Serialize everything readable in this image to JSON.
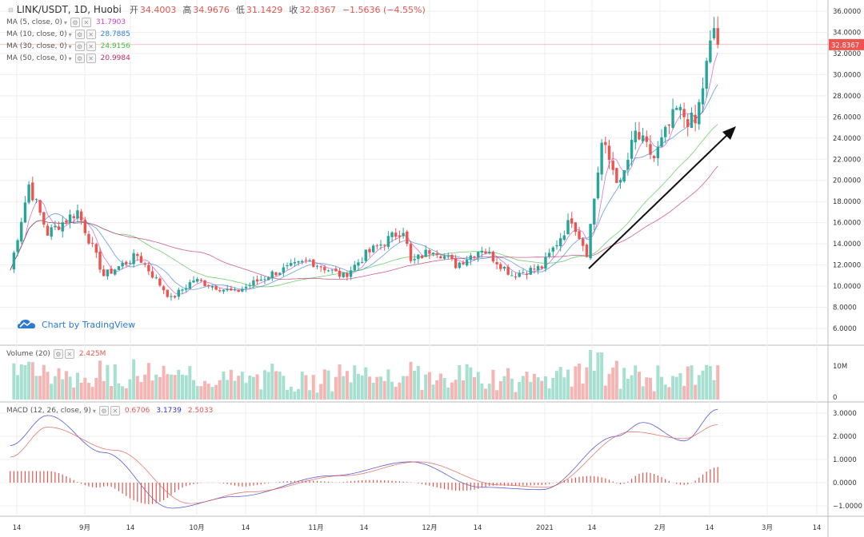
{
  "header": {
    "symbol": "LINK/USDT, 1D, Huobi",
    "open_label": "开",
    "open": "34.4003",
    "high_label": "高",
    "high": "34.9676",
    "low_label": "低",
    "low": "31.1429",
    "close_label": "收",
    "close": "32.8367",
    "change": "−1.5636 (−4.55%)"
  },
  "indicators": {
    "ma5": {
      "label": "MA (5, close, 0)",
      "value": "31.7903",
      "color": "#c844c8"
    },
    "ma10": {
      "label": "MA (10, close, 0)",
      "value": "28.7885",
      "color": "#2f7fd8"
    },
    "ma30": {
      "label": "MA (30, close, 0)",
      "value": "24.9156",
      "color": "#3fbf3f"
    },
    "ma50": {
      "label": "MA (50, close, 0)",
      "value": "20.9984",
      "color": "#c0286e"
    },
    "volume": {
      "label": "Volume (20)",
      "value": "2.425M",
      "color": "#e0574f"
    },
    "macd": {
      "label": "MACD (12, 26, close, 9)",
      "hist": "0.6706",
      "macd": "3.1739",
      "signal": "2.5033",
      "hist_color": "#e0574f",
      "macd_color": "#3333cc",
      "signal_color": "#e0574f"
    }
  },
  "branding": {
    "text": "Chart by TradingView"
  },
  "price_badge": {
    "value": "32.8367",
    "color": "#ef5350"
  },
  "colors": {
    "up": "#26a69a",
    "down": "#ef5350",
    "up_vol": "#a7dfd0",
    "down_vol": "#f6b4b2",
    "grid": "#eeeeee"
  },
  "chart_data": [
    {
      "type": "candlestick",
      "title": "LINK/USDT, 1D, Huobi",
      "x_tick_labels": [
        "14",
        "9月",
        "14",
        "10月",
        "14",
        "11月",
        "14",
        "12月",
        "14",
        "2021",
        "14",
        "2月",
        "14",
        "3月",
        "14"
      ],
      "y_tick_labels": [
        "36.0000",
        "34.0000",
        "32.0000",
        "30.0000",
        "28.0000",
        "26.0000",
        "24.0000",
        "22.0000",
        "20.0000",
        "18.0000",
        "16.0000",
        "14.0000",
        "12.0000",
        "10.0000",
        "8.0000",
        "6.0000"
      ],
      "ylim": [
        6,
        36
      ],
      "last_close": 32.8367,
      "keypoints": [
        {
          "date": "2020-08-11",
          "close": 11.5
        },
        {
          "date": "2020-08-16",
          "close": 19.6
        },
        {
          "date": "2020-08-21",
          "close": 15.0
        },
        {
          "date": "2020-08-29",
          "close": 17.1
        },
        {
          "date": "2020-09-05",
          "close": 11.0
        },
        {
          "date": "2020-09-14",
          "close": 12.9
        },
        {
          "date": "2020-09-23",
          "close": 8.8
        },
        {
          "date": "2020-09-29",
          "close": 10.6
        },
        {
          "date": "2020-10-10",
          "close": 9.4
        },
        {
          "date": "2020-10-20",
          "close": 11.2
        },
        {
          "date": "2020-10-30",
          "close": 12.4
        },
        {
          "date": "2020-11-08",
          "close": 10.9
        },
        {
          "date": "2020-11-14",
          "close": 13.0
        },
        {
          "date": "2020-11-24",
          "close": 15.4
        },
        {
          "date": "2020-11-26",
          "close": 12.2
        },
        {
          "date": "2020-12-02",
          "close": 13.6
        },
        {
          "date": "2020-12-08",
          "close": 12.0
        },
        {
          "date": "2020-12-15",
          "close": 13.6
        },
        {
          "date": "2020-12-23",
          "close": 11.1
        },
        {
          "date": "2020-12-31",
          "close": 11.8
        },
        {
          "date": "2021-01-08",
          "close": 16.4
        },
        {
          "date": "2021-01-12",
          "close": 13.2
        },
        {
          "date": "2021-01-16",
          "close": 23.5
        },
        {
          "date": "2021-01-21",
          "close": 19.5
        },
        {
          "date": "2021-01-25",
          "close": 24.4
        },
        {
          "date": "2021-01-30",
          "close": 22.1
        },
        {
          "date": "2021-02-05",
          "close": 26.6
        },
        {
          "date": "2021-02-10",
          "close": 25.3
        },
        {
          "date": "2021-02-15",
          "close": 34.4
        },
        {
          "date": "2021-02-16",
          "close": 32.8367
        }
      ],
      "ma_final": {
        "ma5": 31.7903,
        "ma10": 28.7885,
        "ma30": 24.9156,
        "ma50": 20.9984
      }
    },
    {
      "type": "bar",
      "title": "Volume (20)",
      "y_tick_labels": [
        "10M",
        "0"
      ],
      "last_value": "2.425M"
    },
    {
      "type": "bar",
      "title": "MACD (12, 26, close, 9)",
      "y_tick_labels": [
        "3.0000",
        "2.0000",
        "1.0000",
        "0.0000",
        "−1.0000"
      ],
      "ylim": [
        -1.0,
        3.0
      ],
      "series": [
        {
          "name": "MACD",
          "keypoints": [
            {
              "date": "2020-08-11",
              "value": 1.6
            },
            {
              "date": "2020-08-21",
              "value": 2.9
            },
            {
              "date": "2020-09-05",
              "value": 1.3
            },
            {
              "date": "2020-09-23",
              "value": -1.1
            },
            {
              "date": "2020-10-10",
              "value": -0.6
            },
            {
              "date": "2020-11-05",
              "value": 0.3
            },
            {
              "date": "2020-11-26",
              "value": 0.9
            },
            {
              "date": "2020-12-15",
              "value": -0.2
            },
            {
              "date": "2020-12-31",
              "value": -0.3
            },
            {
              "date": "2021-01-20",
              "value": 2.0
            },
            {
              "date": "2021-01-27",
              "value": 2.6
            },
            {
              "date": "2021-02-07",
              "value": 1.8
            },
            {
              "date": "2021-02-16",
              "value": 3.17
            }
          ]
        },
        {
          "name": "Signal",
          "keypoints": [
            {
              "date": "2020-08-11",
              "value": 1.1
            },
            {
              "date": "2020-08-21",
              "value": 2.4
            },
            {
              "date": "2020-09-08",
              "value": 1.4
            },
            {
              "date": "2020-09-28",
              "value": -0.9
            },
            {
              "date": "2020-10-14",
              "value": -0.4
            },
            {
              "date": "2020-11-08",
              "value": 0.3
            },
            {
              "date": "2020-11-28",
              "value": 0.9
            },
            {
              "date": "2020-12-20",
              "value": -0.1
            },
            {
              "date": "2021-01-01",
              "value": -0.2
            },
            {
              "date": "2021-01-24",
              "value": 2.2
            },
            {
              "date": "2021-02-07",
              "value": 1.9
            },
            {
              "date": "2021-02-16",
              "value": 2.5
            }
          ]
        }
      ],
      "last_values": {
        "histogram": 0.6706,
        "macd": 3.1739,
        "signal": 2.5033
      }
    }
  ]
}
